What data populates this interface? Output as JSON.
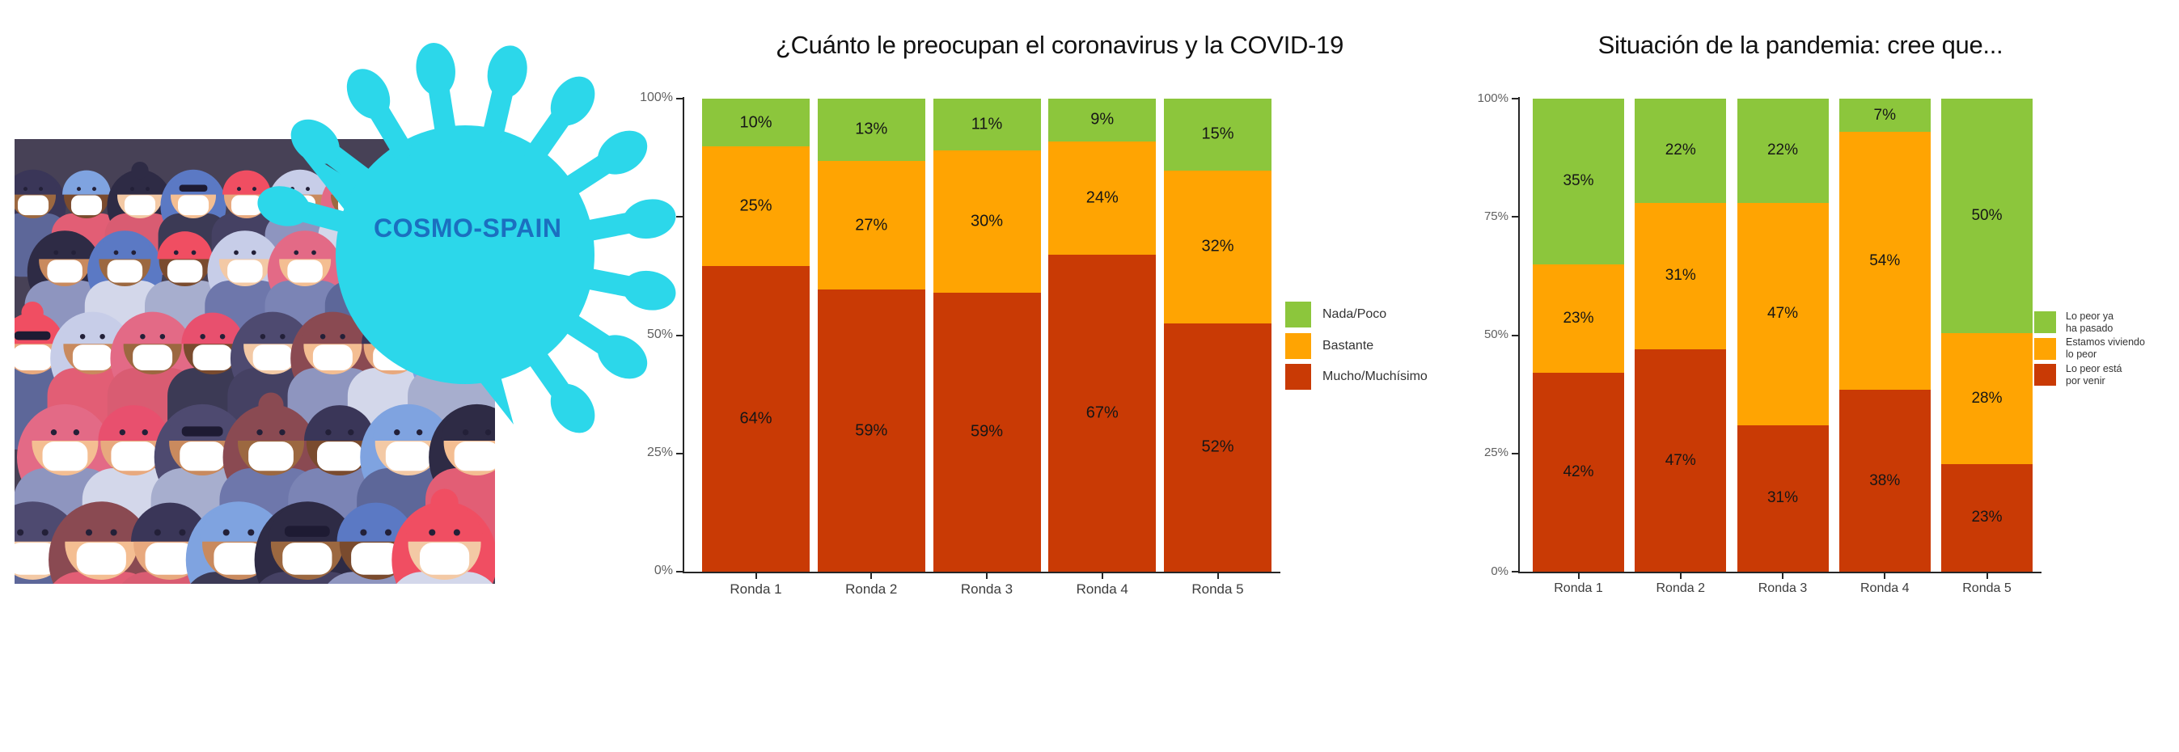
{
  "page": {
    "background": "#ffffff"
  },
  "logo": {
    "text": "COSMO-SPAIN",
    "color": "#1B6FC0"
  },
  "illustration": {
    "description": "crowd-wearing-face-masks",
    "virus_color": "#2CD7EA",
    "background": "#474156",
    "mask_color": "#FFFFFF",
    "skins": [
      "#F4BE92",
      "#E8A97E",
      "#C98A5E",
      "#9C6840",
      "#7A4B2E",
      "#F3C9A5"
    ],
    "hairs": [
      "#3A3658",
      "#E8506E",
      "#F04E62",
      "#7FA3E0",
      "#4E4A70",
      "#C7CDE8",
      "#2E2B45",
      "#8A4A52",
      "#E36A86",
      "#5B79C4"
    ],
    "shirts": [
      "#8E95BF",
      "#6E77AB",
      "#E25E75",
      "#454163",
      "#A7AECE",
      "#5D6799",
      "#3C3A55",
      "#D3D7EA",
      "#7B84B5",
      "#D95C72"
    ]
  },
  "chart_data": [
    {
      "type": "bar",
      "stacked": true,
      "units": "percent",
      "title": "¿Cuánto le preocupan el coronavirus y la COVID-19",
      "categories": [
        "Ronda 1",
        "Ronda 2",
        "Ronda 3",
        "Ronda 4",
        "Ronda 5"
      ],
      "series": [
        {
          "name": "Mucho/Muchísimo",
          "color": "#C93A05",
          "values": [
            64,
            59,
            59,
            67,
            52
          ]
        },
        {
          "name": "Bastante",
          "color": "#FFA402",
          "values": [
            25,
            27,
            30,
            24,
            32
          ]
        },
        {
          "name": "Nada/Poco",
          "color": "#8CC63C",
          "values": [
            10,
            13,
            11,
            9,
            15
          ]
        }
      ],
      "legend": [
        {
          "label": "Nada/Poco",
          "color": "#8CC63C",
          "lines": [
            "Nada/Poco"
          ]
        },
        {
          "label": "Bastante",
          "color": "#FFA402",
          "lines": [
            "Bastante"
          ]
        },
        {
          "label": "Mucho/Muchísimo",
          "color": "#C93A05",
          "lines": [
            "Mucho/Muchísimo"
          ]
        }
      ],
      "y_ticks": [
        "0%",
        "25%",
        "50%",
        "75%",
        "100%"
      ],
      "ylim": [
        0,
        100
      ],
      "xlabel": "",
      "ylabel": "",
      "grid": false,
      "legend_position": "right"
    },
    {
      "type": "bar",
      "stacked": true,
      "units": "percent",
      "title": "Situación de la pandemia: cree que...",
      "categories": [
        "Ronda 1",
        "Ronda 2",
        "Ronda 3",
        "Ronda 4",
        "Ronda 5"
      ],
      "series": [
        {
          "name": "Lo peor está por venir",
          "color": "#C93A05",
          "values": [
            42,
            47,
            31,
            38,
            23
          ]
        },
        {
          "name": "Estamos viviendo lo peor",
          "color": "#FFA402",
          "values": [
            23,
            31,
            47,
            54,
            28
          ]
        },
        {
          "name": "Lo peor ya ha pasado",
          "color": "#8CC63C",
          "values": [
            35,
            22,
            22,
            7,
            50
          ]
        }
      ],
      "legend": [
        {
          "label": "Lo peor ya ha pasado",
          "color": "#8CC63C",
          "lines": [
            "Lo peor ya",
            "ha pasado"
          ]
        },
        {
          "label": "Estamos viviendo lo peor",
          "color": "#FFA402",
          "lines": [
            "Estamos viviendo",
            "lo peor"
          ]
        },
        {
          "label": "Lo peor está por venir",
          "color": "#C93A05",
          "lines": [
            "Lo peor está",
            "por venir"
          ]
        }
      ],
      "y_ticks": [
        "0%",
        "25%",
        "50%",
        "75%",
        "100%"
      ],
      "ylim": [
        0,
        100
      ],
      "xlabel": "",
      "ylabel": "",
      "grid": false,
      "legend_position": "right"
    }
  ]
}
